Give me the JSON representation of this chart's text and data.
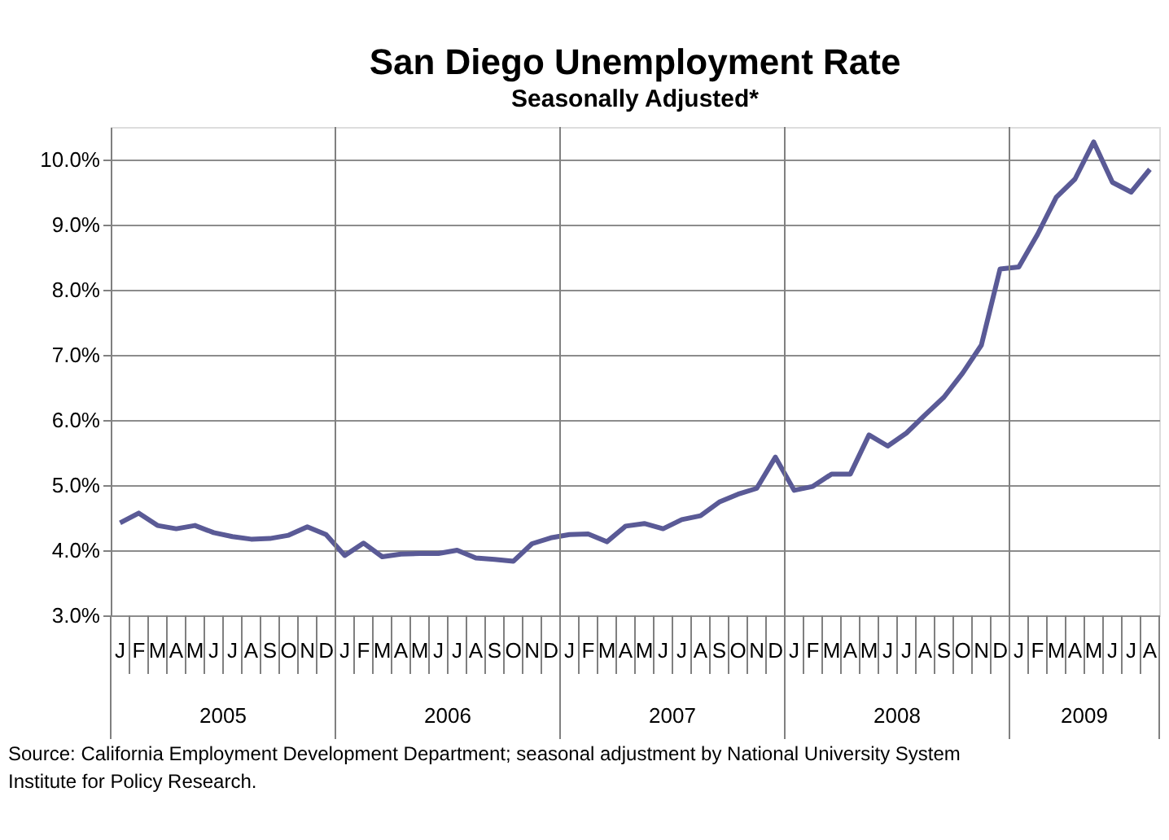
{
  "chart_data": {
    "type": "line",
    "title": "San Diego Unemployment Rate",
    "subtitle": "Seasonally Adjusted*",
    "categories": [
      "J",
      "F",
      "M",
      "A",
      "M",
      "J",
      "J",
      "A",
      "S",
      "O",
      "N",
      "D",
      "J",
      "F",
      "M",
      "A",
      "M",
      "J",
      "J",
      "A",
      "S",
      "O",
      "N",
      "D",
      "J",
      "F",
      "M",
      "A",
      "M",
      "J",
      "J",
      "A",
      "S",
      "O",
      "N",
      "D",
      "J",
      "F",
      "M",
      "A",
      "M",
      "J",
      "J",
      "A",
      "S",
      "O",
      "N",
      "D",
      "J",
      "F",
      "M",
      "A",
      "M",
      "J",
      "J",
      "A"
    ],
    "series": [
      {
        "color": "#5a5a96",
        "values": [
          4.42,
          4.57,
          4.38,
          4.33,
          4.38,
          4.27,
          4.21,
          4.17,
          4.18,
          4.23,
          4.36,
          4.24,
          3.92,
          4.11,
          3.9,
          3.94,
          3.95,
          3.95,
          4.0,
          3.88,
          3.86,
          3.83,
          4.1,
          4.19,
          4.24,
          4.25,
          4.13,
          4.37,
          4.41,
          4.33,
          4.47,
          4.53,
          4.74,
          4.86,
          4.95,
          5.43,
          4.92,
          4.98,
          5.17,
          5.17,
          5.77,
          5.6,
          5.8,
          6.08,
          6.35,
          6.72,
          7.15,
          8.32,
          8.35,
          8.85,
          9.42,
          9.7,
          10.27,
          9.65,
          9.5,
          9.85
        ]
      }
    ],
    "ylim": [
      3,
      10.5
    ],
    "yticks": [
      {
        "value": 3,
        "label": "3.0%"
      },
      {
        "value": 4,
        "label": "4.0%"
      },
      {
        "value": 5,
        "label": "5.0%"
      },
      {
        "value": 6,
        "label": "6.0%"
      },
      {
        "value": 7,
        "label": "7.0%"
      },
      {
        "value": 8,
        "label": "8.0%"
      },
      {
        "value": 9,
        "label": "9.0%"
      },
      {
        "value": 10,
        "label": "10.0%"
      }
    ],
    "grid": "y",
    "marker": "none",
    "line_style": "solid",
    "annotations": [
      "2005",
      "2006",
      "2007",
      "2008",
      "2009",
      "Source: California Employment Development Department; seasonal adjustment by National University System Institute for Policy Research."
    ]
  }
}
